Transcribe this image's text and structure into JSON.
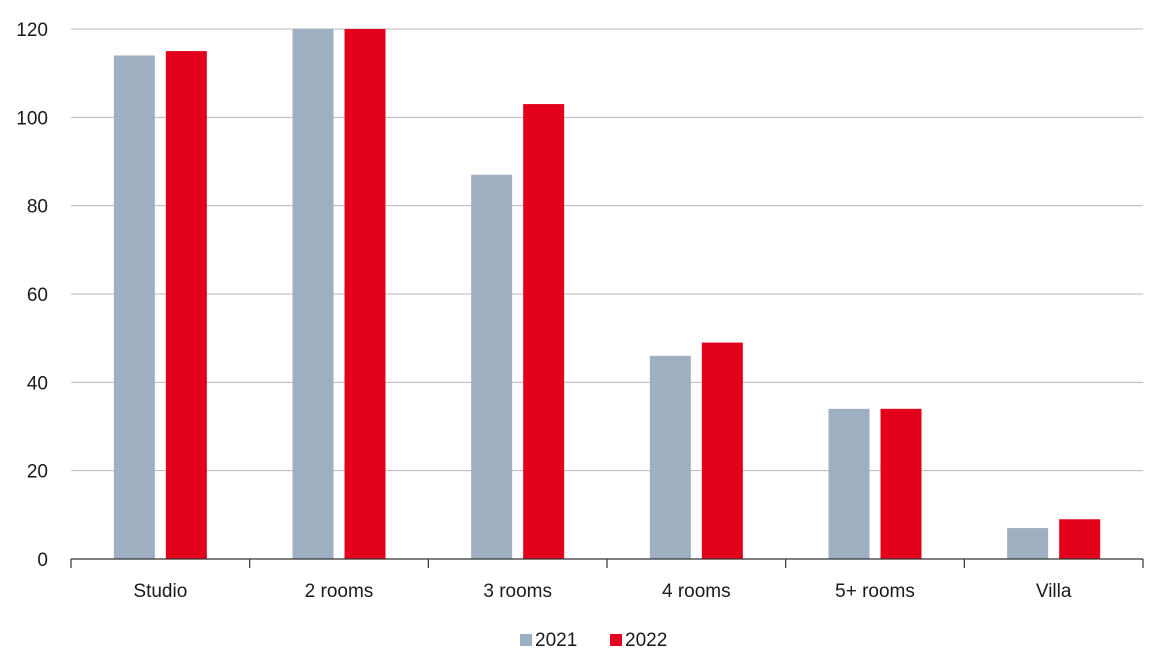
{
  "chart_data": {
    "type": "bar",
    "categories": [
      "Studio",
      "2 rooms",
      "3 rooms",
      "4 rooms",
      "5+ rooms",
      "Villa"
    ],
    "series": [
      {
        "name": "2021",
        "values": [
          114,
          120,
          87,
          46,
          34,
          7
        ],
        "color": "#9dafc0"
      },
      {
        "name": "2022",
        "values": [
          115,
          120,
          103,
          49,
          34,
          9
        ],
        "color": "#e2001a"
      }
    ],
    "yticks": [
      "0",
      "20",
      "40",
      "60",
      "80",
      "100",
      "120"
    ],
    "ylim": [
      0,
      120
    ],
    "grid": true,
    "legend_position": "bottom-center"
  }
}
